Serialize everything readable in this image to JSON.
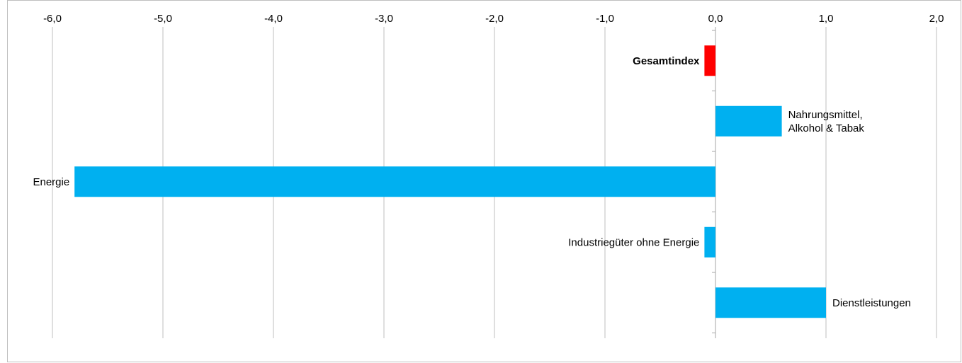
{
  "chart_data": {
    "type": "bar",
    "orientation": "horizontal",
    "xlim": [
      -6.0,
      2.0
    ],
    "tick_values": [
      -6.0,
      -5.0,
      -4.0,
      -3.0,
      -2.0,
      -1.0,
      0.0,
      1.0,
      2.0
    ],
    "tick_labels": [
      "-6,0",
      "-5,0",
      "-4,0",
      "-3,0",
      "-2,0",
      "-1,0",
      "0,0",
      "1,0",
      "2,0"
    ],
    "grid": true,
    "categories": [
      "Gesamtindex",
      "Nahrungsmittel, Alkohol & Tabak",
      "Energie",
      "Industriegüter ohne Energie",
      "Dienstleistungen"
    ],
    "label_lines": [
      [
        "Gesamtindex"
      ],
      [
        "Nahrungsmittel,",
        "Alkohol & Tabak"
      ],
      [
        "Energie"
      ],
      [
        "Industriegüter ohne Energie"
      ],
      [
        "Dienstleistungen"
      ]
    ],
    "values": [
      -0.1,
      0.6,
      -5.8,
      -0.1,
      1.0
    ],
    "bold": [
      true,
      false,
      false,
      false,
      false
    ],
    "colors": [
      "#ff0000",
      "#00b0f0",
      "#00b0f0",
      "#00b0f0",
      "#00b0f0"
    ]
  }
}
